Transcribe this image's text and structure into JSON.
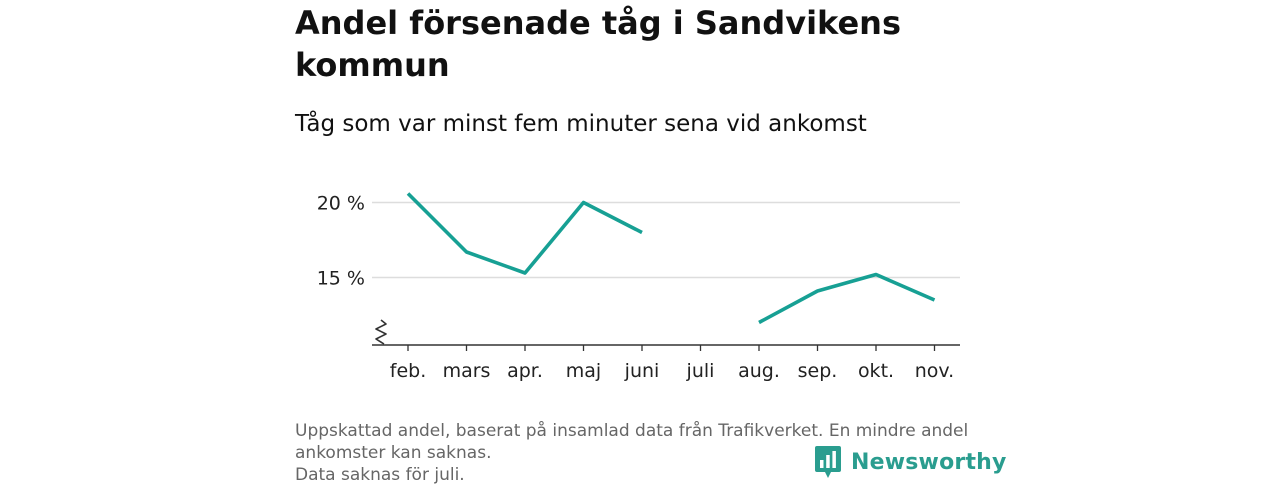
{
  "title": "Andel försenade tåg i Sandvikens kommun",
  "subtitle": "Tåg som var minst fem minuter sena vid ankomst",
  "footnote": {
    "line1": "Uppskattad andel, baserat på insamlad data från Trafikverket. En mindre andel ankomster kan saknas.",
    "line2": "Data saknas för juli."
  },
  "brand": {
    "name": "Newsworthy",
    "icon": "newsworthy-logo-icon"
  },
  "colors": {
    "line": "#17a094",
    "grid": "#dddddd",
    "axis": "#333333",
    "brand": "#2a9d8f"
  },
  "chart_data": {
    "type": "line",
    "categories": [
      "feb.",
      "mars",
      "apr.",
      "maj",
      "juni",
      "juli",
      "aug.",
      "sep.",
      "okt.",
      "nov."
    ],
    "series": [
      {
        "values": [
          20.6,
          16.7,
          15.3,
          20.0,
          18.0,
          null,
          12.0,
          14.1,
          15.2,
          13.5
        ]
      }
    ],
    "yticks": [
      15,
      20
    ],
    "ytick_labels": [
      "15 %",
      "20 %"
    ],
    "ylim": [
      10.5,
      21.5
    ],
    "axis_break": true,
    "grid": true,
    "legend": "none"
  }
}
